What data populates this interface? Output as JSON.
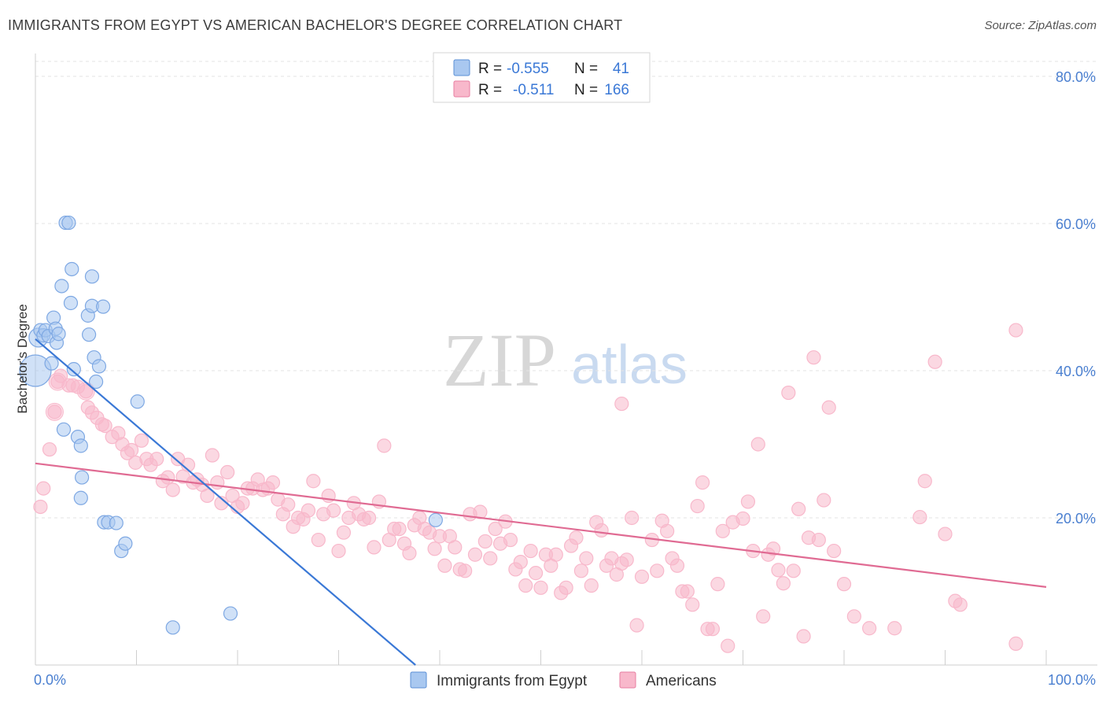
{
  "title": "IMMIGRANTS FROM EGYPT VS AMERICAN BACHELOR'S DEGREE CORRELATION CHART",
  "source": "Source: ZipAtlas.com",
  "watermark": {
    "zip": "ZIP",
    "atlas": "atlas"
  },
  "legend_top": [
    {
      "r_label": "R =",
      "r_value": "-0.555",
      "n_label": "N =",
      "n_value": "41",
      "color": "#a9c8f0",
      "stroke": "#5b8fd6"
    },
    {
      "r_label": "R =",
      "r_value": "-0.511",
      "n_label": "N =",
      "n_value": "166",
      "color": "#f8b8cb",
      "stroke": "#e77ea0"
    }
  ],
  "legend_bottom": [
    {
      "label": "Immigrants from Egypt",
      "color": "#a9c8f0",
      "stroke": "#5b8fd6"
    },
    {
      "label": "Americans",
      "color": "#f8b8cb",
      "stroke": "#e77ea0"
    }
  ],
  "chart_data": {
    "type": "scatter",
    "ylabel": "Bachelor's Degree",
    "xlim": [
      0,
      100
    ],
    "ylim": [
      0,
      80
    ],
    "x_tick_labels": [
      "0.0%",
      "100.0%"
    ],
    "y_tick_labels": [
      "20.0%",
      "40.0%",
      "60.0%",
      "80.0%"
    ],
    "y_ticks": [
      20,
      40,
      60,
      80
    ],
    "grid": true,
    "colors": {
      "egypt": "#5b8fd6",
      "egypt_fill": "#a9c8f0",
      "americans": "#e06b93",
      "americans_fill": "#f8b8cb",
      "axis_label": "#4a7fd0"
    },
    "series": [
      {
        "name": "Immigrants from Egypt",
        "trend": {
          "x": [
            0.0,
            37.6
          ],
          "y": [
            44.3,
            0.0
          ]
        },
        "points": [
          [
            0.0,
            40.0,
            3
          ],
          [
            0.3,
            44.5,
            2
          ],
          [
            0.5,
            45.5,
            1
          ],
          [
            0.8,
            44.8,
            1
          ],
          [
            1.0,
            45.5,
            1
          ],
          [
            1.3,
            44.7,
            1
          ],
          [
            1.6,
            41.0,
            1
          ],
          [
            1.8,
            47.2,
            1
          ],
          [
            2.0,
            45.7,
            1
          ],
          [
            2.1,
            43.8,
            1
          ],
          [
            2.3,
            45.0,
            1
          ],
          [
            2.6,
            51.5,
            1
          ],
          [
            3.0,
            60.1,
            1
          ],
          [
            3.3,
            60.1,
            1
          ],
          [
            3.5,
            49.2,
            1
          ],
          [
            3.6,
            53.8,
            1
          ],
          [
            3.8,
            40.2,
            1
          ],
          [
            2.8,
            32.0,
            1
          ],
          [
            4.2,
            31.0,
            1
          ],
          [
            4.5,
            29.8,
            1
          ],
          [
            4.6,
            25.5,
            1
          ],
          [
            4.5,
            22.7,
            1
          ],
          [
            5.2,
            47.5,
            1
          ],
          [
            5.3,
            44.9,
            1
          ],
          [
            5.6,
            52.8,
            1
          ],
          [
            5.6,
            48.8,
            1
          ],
          [
            5.8,
            41.8,
            1
          ],
          [
            6.0,
            38.5,
            1
          ],
          [
            6.3,
            40.6,
            1
          ],
          [
            6.7,
            48.7,
            1
          ],
          [
            6.8,
            19.4,
            1
          ],
          [
            7.2,
            19.4,
            1
          ],
          [
            8.0,
            19.3,
            1
          ],
          [
            8.5,
            15.5,
            1
          ],
          [
            8.9,
            16.5,
            1
          ],
          [
            10.1,
            35.8,
            1
          ],
          [
            13.6,
            5.1,
            1
          ],
          [
            19.3,
            7.0,
            1
          ],
          [
            39.6,
            19.7,
            1
          ]
        ]
      },
      {
        "name": "Americans",
        "trend": {
          "x": [
            0.0,
            100.0
          ],
          "y": [
            27.4,
            10.6
          ]
        },
        "points": [
          [
            0.5,
            21.5
          ],
          [
            0.8,
            24.0
          ],
          [
            1.4,
            29.3
          ],
          [
            1.9,
            34.4
          ],
          [
            2.2,
            38.5
          ],
          [
            2.5,
            39.3
          ],
          [
            3.3,
            38.0
          ],
          [
            3.7,
            38.0
          ],
          [
            4.2,
            37.8
          ],
          [
            5.0,
            37.2
          ],
          [
            5.2,
            35.0
          ],
          [
            5.6,
            34.3
          ],
          [
            6.1,
            33.6
          ],
          [
            6.6,
            32.7
          ],
          [
            6.9,
            32.5
          ],
          [
            7.6,
            31.0
          ],
          [
            8.2,
            31.5
          ],
          [
            8.6,
            30.0
          ],
          [
            9.1,
            28.8
          ],
          [
            9.5,
            29.2
          ],
          [
            9.9,
            27.5
          ],
          [
            10.5,
            30.5
          ],
          [
            11.0,
            28.0
          ],
          [
            11.4,
            27.2
          ],
          [
            12.0,
            28.0
          ],
          [
            12.6,
            25.0
          ],
          [
            13.1,
            25.5
          ],
          [
            13.6,
            23.8
          ],
          [
            14.1,
            28.0
          ],
          [
            14.6,
            25.6
          ],
          [
            15.1,
            27.2
          ],
          [
            15.6,
            24.8
          ],
          [
            16.0,
            25.2
          ],
          [
            16.5,
            24.5
          ],
          [
            17.0,
            23.0
          ],
          [
            17.5,
            28.5
          ],
          [
            18.0,
            24.8
          ],
          [
            18.4,
            22.0
          ],
          [
            19.0,
            26.2
          ],
          [
            19.5,
            23.0
          ],
          [
            20.0,
            21.5
          ],
          [
            20.5,
            22.0
          ],
          [
            21.0,
            24.0
          ],
          [
            21.5,
            24.0
          ],
          [
            22.0,
            25.2
          ],
          [
            22.5,
            23.8
          ],
          [
            23.0,
            24.0
          ],
          [
            23.5,
            24.8
          ],
          [
            24.0,
            22.5
          ],
          [
            24.5,
            20.5
          ],
          [
            25.0,
            21.8
          ],
          [
            25.5,
            18.8
          ],
          [
            26.0,
            20.0
          ],
          [
            26.5,
            19.8
          ],
          [
            27.0,
            21.0
          ],
          [
            27.5,
            25.0
          ],
          [
            28.0,
            17.0
          ],
          [
            28.5,
            20.5
          ],
          [
            29.0,
            23.0
          ],
          [
            29.5,
            21.0
          ],
          [
            30.0,
            15.5
          ],
          [
            30.5,
            18.0
          ],
          [
            31.0,
            20.0
          ],
          [
            31.5,
            22.0
          ],
          [
            32.0,
            20.5
          ],
          [
            32.5,
            19.8
          ],
          [
            33.0,
            20.0
          ],
          [
            33.5,
            16.0
          ],
          [
            34.0,
            22.2
          ],
          [
            34.5,
            29.8
          ],
          [
            35.0,
            17.0
          ],
          [
            35.5,
            18.5
          ],
          [
            36.0,
            18.5
          ],
          [
            36.5,
            16.5
          ],
          [
            37.0,
            15.2
          ],
          [
            37.5,
            19.0
          ],
          [
            38.0,
            20.0
          ],
          [
            38.5,
            18.5
          ],
          [
            39.0,
            18.0
          ],
          [
            39.5,
            15.8
          ],
          [
            40.0,
            17.5
          ],
          [
            40.5,
            13.5
          ],
          [
            41.0,
            17.5
          ],
          [
            41.5,
            16.0
          ],
          [
            42.0,
            13.0
          ],
          [
            42.5,
            12.8
          ],
          [
            43.0,
            20.5
          ],
          [
            43.5,
            15.0
          ],
          [
            44.0,
            20.8
          ],
          [
            44.5,
            16.8
          ],
          [
            45.0,
            14.5
          ],
          [
            45.5,
            18.5
          ],
          [
            46.0,
            16.5
          ],
          [
            46.5,
            19.5
          ],
          [
            47.0,
            17.0
          ],
          [
            47.5,
            13.0
          ],
          [
            48.0,
            14.0
          ],
          [
            48.5,
            10.8
          ],
          [
            49.0,
            15.5
          ],
          [
            49.5,
            12.5
          ],
          [
            50.0,
            10.5
          ],
          [
            50.5,
            15.0
          ],
          [
            51.0,
            13.5
          ],
          [
            51.5,
            15.0
          ],
          [
            52.0,
            9.8
          ],
          [
            52.5,
            10.5
          ],
          [
            53.0,
            16.2
          ],
          [
            53.5,
            17.3
          ],
          [
            54.0,
            12.8
          ],
          [
            54.5,
            14.5
          ],
          [
            55.0,
            10.8
          ],
          [
            55.5,
            19.4
          ],
          [
            56.0,
            18.3
          ],
          [
            56.5,
            13.5
          ],
          [
            57.0,
            14.5
          ],
          [
            57.5,
            12.3
          ],
          [
            58.0,
            13.8
          ],
          [
            58.5,
            14.3
          ],
          [
            59.0,
            20.0
          ],
          [
            59.5,
            5.4
          ],
          [
            60.0,
            12.0
          ],
          [
            61.0,
            17.0
          ],
          [
            61.5,
            12.8
          ],
          [
            62.0,
            19.6
          ],
          [
            62.5,
            18.2
          ],
          [
            63.0,
            14.5
          ],
          [
            63.5,
            13.5
          ],
          [
            64.0,
            10.0
          ],
          [
            64.5,
            10.0
          ],
          [
            65.0,
            8.2
          ],
          [
            65.5,
            21.6
          ],
          [
            66.0,
            24.8
          ],
          [
            66.5,
            4.9
          ],
          [
            67.0,
            4.9
          ],
          [
            67.5,
            11.0
          ],
          [
            68.0,
            18.2
          ],
          [
            68.5,
            2.6
          ],
          [
            69.0,
            19.4
          ],
          [
            70.0,
            19.9
          ],
          [
            70.5,
            22.2
          ],
          [
            71.0,
            15.5
          ],
          [
            71.5,
            30.0
          ],
          [
            72.0,
            6.6
          ],
          [
            72.5,
            15.0
          ],
          [
            73.0,
            15.8
          ],
          [
            73.5,
            12.9
          ],
          [
            74.0,
            11.1
          ],
          [
            74.5,
            37.0
          ],
          [
            75.0,
            12.8
          ],
          [
            75.5,
            21.2
          ],
          [
            76.0,
            3.9
          ],
          [
            76.5,
            17.3
          ],
          [
            77.0,
            41.8
          ],
          [
            77.5,
            17.0
          ],
          [
            78.0,
            22.4
          ],
          [
            78.5,
            35.0
          ],
          [
            79.0,
            15.5
          ],
          [
            80.0,
            11.0
          ],
          [
            81.0,
            6.6
          ],
          [
            82.5,
            5.0
          ],
          [
            85.0,
            5.0
          ],
          [
            87.5,
            20.1
          ],
          [
            88.0,
            25.0
          ],
          [
            89.0,
            41.2
          ],
          [
            90.0,
            17.8
          ],
          [
            91.0,
            8.7
          ],
          [
            91.5,
            8.2
          ],
          [
            97.0,
            45.5
          ],
          [
            97.0,
            2.9
          ],
          [
            58.0,
            35.5
          ]
        ]
      }
    ]
  }
}
